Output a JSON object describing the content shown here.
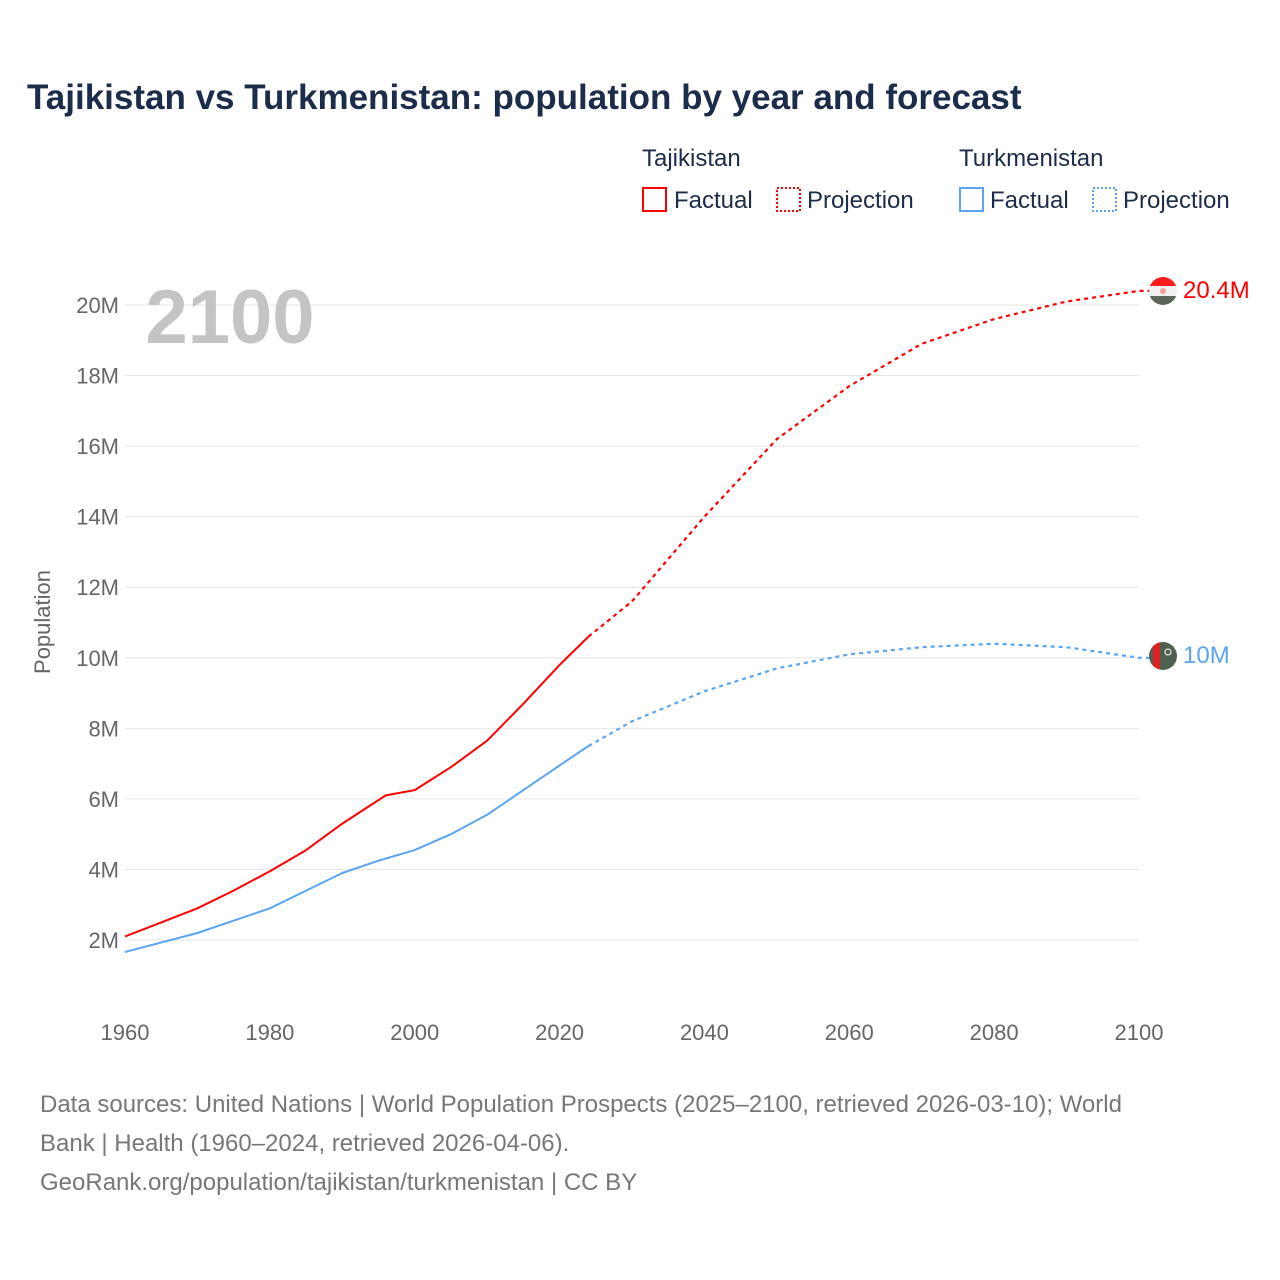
{
  "chart_data": {
    "type": "line",
    "title": "Tajikistan vs Turkmenistan: population by year and forecast",
    "ylabel": "Population",
    "xlabel": "",
    "xlim": [
      1960,
      2100
    ],
    "ylim": [
      0,
      20.8
    ],
    "x_ticks": [
      "1960",
      "1980",
      "2000",
      "2020",
      "2040",
      "2060",
      "2080",
      "2100"
    ],
    "y_ticks": [
      "2M",
      "4M",
      "6M",
      "8M",
      "10M",
      "12M",
      "14M",
      "16M",
      "18M",
      "20M"
    ],
    "grid": true,
    "year_label": "2100",
    "legend": {
      "position": "top-right",
      "groups": [
        {
          "name": "Tajikistan",
          "factual": "Factual",
          "projection": "Projection"
        },
        {
          "name": "Turkmenistan",
          "factual": "Factual",
          "projection": "Projection"
        }
      ]
    },
    "series": [
      {
        "name": "Tajikistan",
        "color": "#ff0000",
        "end_label": "20.4M",
        "factual": {
          "x": [
            1960,
            1965,
            1970,
            1975,
            1980,
            1985,
            1990,
            1993,
            1996,
            2000,
            2005,
            2010,
            2015,
            2020,
            2024
          ],
          "y": [
            2.1,
            2.5,
            2.9,
            3.4,
            3.95,
            4.55,
            5.3,
            5.7,
            6.1,
            6.25,
            6.9,
            7.65,
            8.7,
            9.8,
            10.6
          ]
        },
        "projection": {
          "x": [
            2024,
            2030,
            2040,
            2050,
            2060,
            2070,
            2080,
            2090,
            2100
          ],
          "y": [
            10.6,
            11.6,
            14.0,
            16.2,
            17.7,
            18.9,
            19.6,
            20.1,
            20.4
          ]
        }
      },
      {
        "name": "Turkmenistan",
        "color": "#5ba4f0",
        "end_label": "10M",
        "factual": {
          "x": [
            1960,
            1970,
            1980,
            1985,
            1990,
            1995,
            2000,
            2005,
            2010,
            2015,
            2020,
            2024
          ],
          "y": [
            1.66,
            2.2,
            2.9,
            3.4,
            3.9,
            4.25,
            4.55,
            5.0,
            5.55,
            6.25,
            6.95,
            7.5
          ]
        },
        "projection": {
          "x": [
            2024,
            2030,
            2040,
            2050,
            2060,
            2070,
            2080,
            2090,
            2100
          ],
          "y": [
            7.5,
            8.2,
            9.05,
            9.7,
            10.1,
            10.3,
            10.4,
            10.3,
            10.0
          ]
        }
      }
    ]
  },
  "source": {
    "line1": "Data sources: United Nations | World Population Prospects (2025–2100, retrieved 2026-03-10); World",
    "line2": "Bank | Health (1960–2024, retrieved 2026-04-06).",
    "line3": "GeoRank.org/population/tajikistan/turkmenistan | CC BY"
  }
}
